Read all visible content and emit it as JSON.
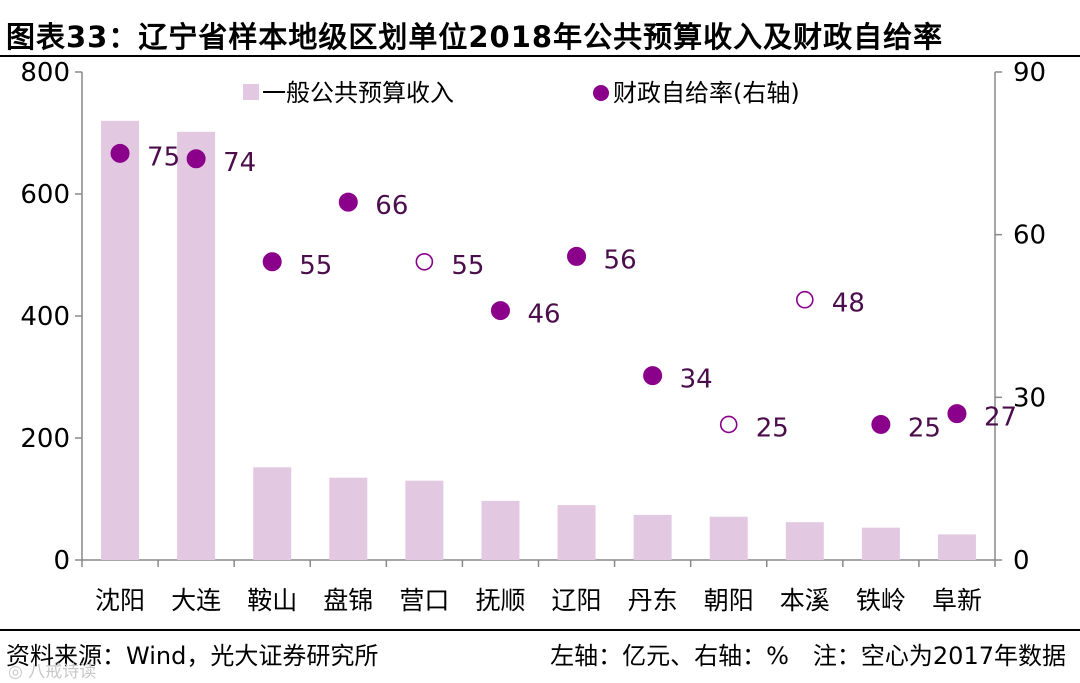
{
  "title": "图表33：辽宁省样本地级区划单位2018年公共预算收入及财政自给率",
  "footer": {
    "source": "资料来源：Wind，光大证券研究所",
    "note": "左轴：亿元、右轴：%　注：空心为2017年数据"
  },
  "watermark": "◎ 八戒诗读",
  "colors": {
    "bar": "#e3c8e2",
    "point": "#8b008b",
    "axis": "#888888"
  },
  "chart_data": {
    "type": "bar",
    "title": "辽宁省样本地级区划单位2018年公共预算收入及财政自给率",
    "categories": [
      "沈阳",
      "大连",
      "鞍山",
      "盘锦",
      "营口",
      "抚顺",
      "辽阳",
      "丹东",
      "朝阳",
      "本溪",
      "铁岭",
      "阜新"
    ],
    "series": [
      {
        "name": "一般公共预算收入",
        "type": "bar",
        "axis": "left",
        "values": [
          720,
          702,
          152,
          135,
          130,
          97,
          90,
          74,
          71,
          62,
          53,
          42
        ]
      },
      {
        "name": "财政自给率(右轴)",
        "type": "scatter",
        "axis": "right",
        "values": [
          75,
          74,
          55,
          66,
          55,
          46,
          56,
          34,
          25,
          48,
          25,
          27
        ],
        "hollow": [
          false,
          false,
          false,
          false,
          true,
          false,
          false,
          false,
          true,
          true,
          false,
          false
        ]
      }
    ],
    "left_axis": {
      "min": 0,
      "max": 800,
      "ticks": [
        0,
        200,
        400,
        600,
        800
      ],
      "unit": "亿元"
    },
    "right_axis": {
      "min": 0,
      "max": 90,
      "ticks": [
        0,
        30,
        60,
        90
      ],
      "unit": "%"
    },
    "legend": {
      "position": "top",
      "bar_label": "一般公共预算收入",
      "point_label": "财政自给率(右轴)"
    },
    "grid": false
  }
}
